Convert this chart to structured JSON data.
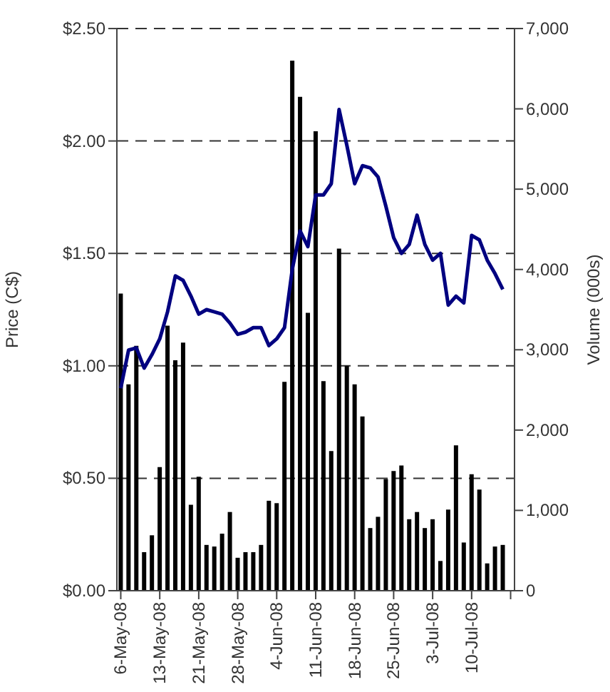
{
  "chart_data": {
    "type": "line",
    "ylabel": "Price (C$)",
    "y2label": "Volume (000s)",
    "categories": [
      "6-May-08",
      null,
      null,
      null,
      null,
      "13-May-08",
      null,
      null,
      null,
      null,
      "21-May-08",
      null,
      null,
      null,
      null,
      "28-May-08",
      null,
      null,
      null,
      null,
      "4-Jun-08",
      null,
      null,
      null,
      null,
      "11-Jun-08",
      null,
      null,
      null,
      null,
      "18-Jun-08",
      null,
      null,
      null,
      null,
      "25-Jun-08",
      null,
      null,
      null,
      null,
      "3-Jul-08",
      null,
      null,
      null,
      null,
      "10-Jul-08",
      null,
      null,
      null,
      null,
      null
    ],
    "series": [
      {
        "type": "bar",
        "axis": "y2",
        "color": "#000000",
        "values": [
          3700,
          2570,
          3050,
          480,
          690,
          1540,
          3300,
          2870,
          3090,
          1070,
          1420,
          570,
          550,
          710,
          980,
          410,
          480,
          480,
          570,
          1120,
          1090,
          2600,
          6600,
          6150,
          3460,
          5720,
          2610,
          1740,
          4260,
          2800,
          2570,
          2170,
          780,
          920,
          1390,
          1490,
          1560,
          890,
          980,
          780,
          890,
          370,
          1010,
          1810,
          600,
          1450,
          1260,
          340,
          550,
          570,
          null
        ]
      },
      {
        "axis": "y",
        "color": "#000080",
        "values": [
          0.9,
          1.07,
          1.08,
          0.99,
          1.05,
          1.12,
          1.24,
          1.4,
          1.38,
          1.31,
          1.23,
          1.25,
          1.24,
          1.23,
          1.19,
          1.14,
          1.15,
          1.17,
          1.17,
          1.09,
          1.12,
          1.17,
          1.43,
          1.6,
          1.53,
          1.76,
          1.76,
          1.81,
          2.14,
          1.98,
          1.81,
          1.89,
          1.88,
          1.84,
          1.71,
          1.57,
          1.5,
          1.54,
          1.67,
          1.54,
          1.47,
          1.5,
          1.27,
          1.31,
          1.28,
          1.58,
          1.56,
          1.47,
          1.41,
          1.34,
          null
        ]
      }
    ],
    "ylim": [
      0,
      2.5
    ],
    "yticks": [
      {
        "value": 0,
        "label": "$0.00"
      },
      {
        "value": 0.5,
        "label": "$0.50"
      },
      {
        "value": 1,
        "label": "$1.00"
      },
      {
        "value": 1.5,
        "label": "$1.50"
      },
      {
        "value": 2,
        "label": "$2.00"
      },
      {
        "value": 2.5,
        "label": "$2.50"
      }
    ],
    "y2lim": [
      0,
      7000
    ],
    "y2ticks": [
      0,
      {
        "value": 1000,
        "label": "1,000"
      },
      {
        "value": 2000,
        "label": "2,000"
      },
      {
        "value": 3000,
        "label": "3,000"
      },
      {
        "value": 4000,
        "label": "4,000"
      },
      {
        "value": 5000,
        "label": "5,000"
      },
      {
        "value": 6000,
        "label": "6,000"
      },
      {
        "value": 7000,
        "label": "7,000"
      }
    ],
    "grid": "y",
    "legend": false
  }
}
